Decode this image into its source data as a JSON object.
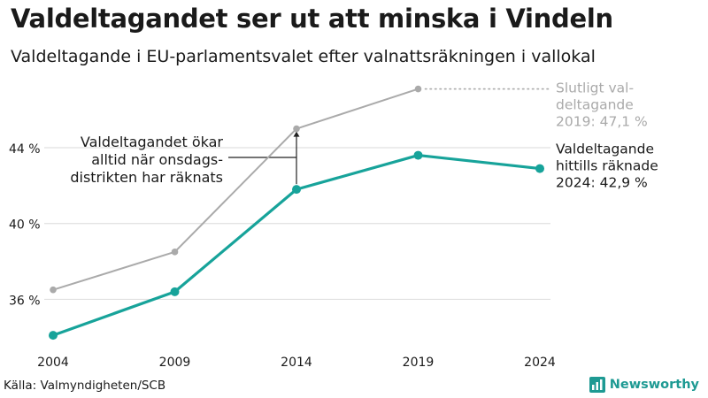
{
  "header": {
    "title": "Valdeltagandet ser ut att minska i Vindeln",
    "subtitle": "Valdeltagande i EU-parlamentsvalet efter valnattsräkningen i vallokal"
  },
  "footer": {
    "source": "Källa: Valmyndigheten/SCB",
    "brand": "Newsworthy"
  },
  "colors": {
    "final": "#aaaaaa",
    "counted": "#17a39a",
    "grid": "#e0e0e0",
    "annotation": "#222222"
  },
  "chart_data": {
    "type": "line",
    "x": [
      2004,
      2009,
      2014,
      2019,
      2024
    ],
    "ylim": [
      33.5,
      47.5
    ],
    "yticks": [
      36,
      40,
      44
    ],
    "ytick_labels": [
      "36 %",
      "40 %",
      "44 %"
    ],
    "xtick_labels": [
      "2004",
      "2009",
      "2014",
      "2019",
      "2024"
    ],
    "grid": true,
    "series": [
      {
        "key": "final",
        "values": [
          36.5,
          38.5,
          45.0,
          47.1,
          null
        ]
      },
      {
        "key": "counted",
        "values": [
          34.1,
          36.4,
          41.8,
          43.6,
          42.9
        ]
      }
    ],
    "labels": {
      "final": [
        "Slutligt val-",
        "deltagande",
        "2019: 47,1 %"
      ],
      "counted": [
        "Valdeltagande",
        "hittills räknade",
        "2024: 42,9 %"
      ]
    },
    "annotation": {
      "lines": [
        "Valdeltagandet ökar",
        "alltid när onsdags-",
        "distrikten har räknats"
      ],
      "x": 2014
    }
  }
}
